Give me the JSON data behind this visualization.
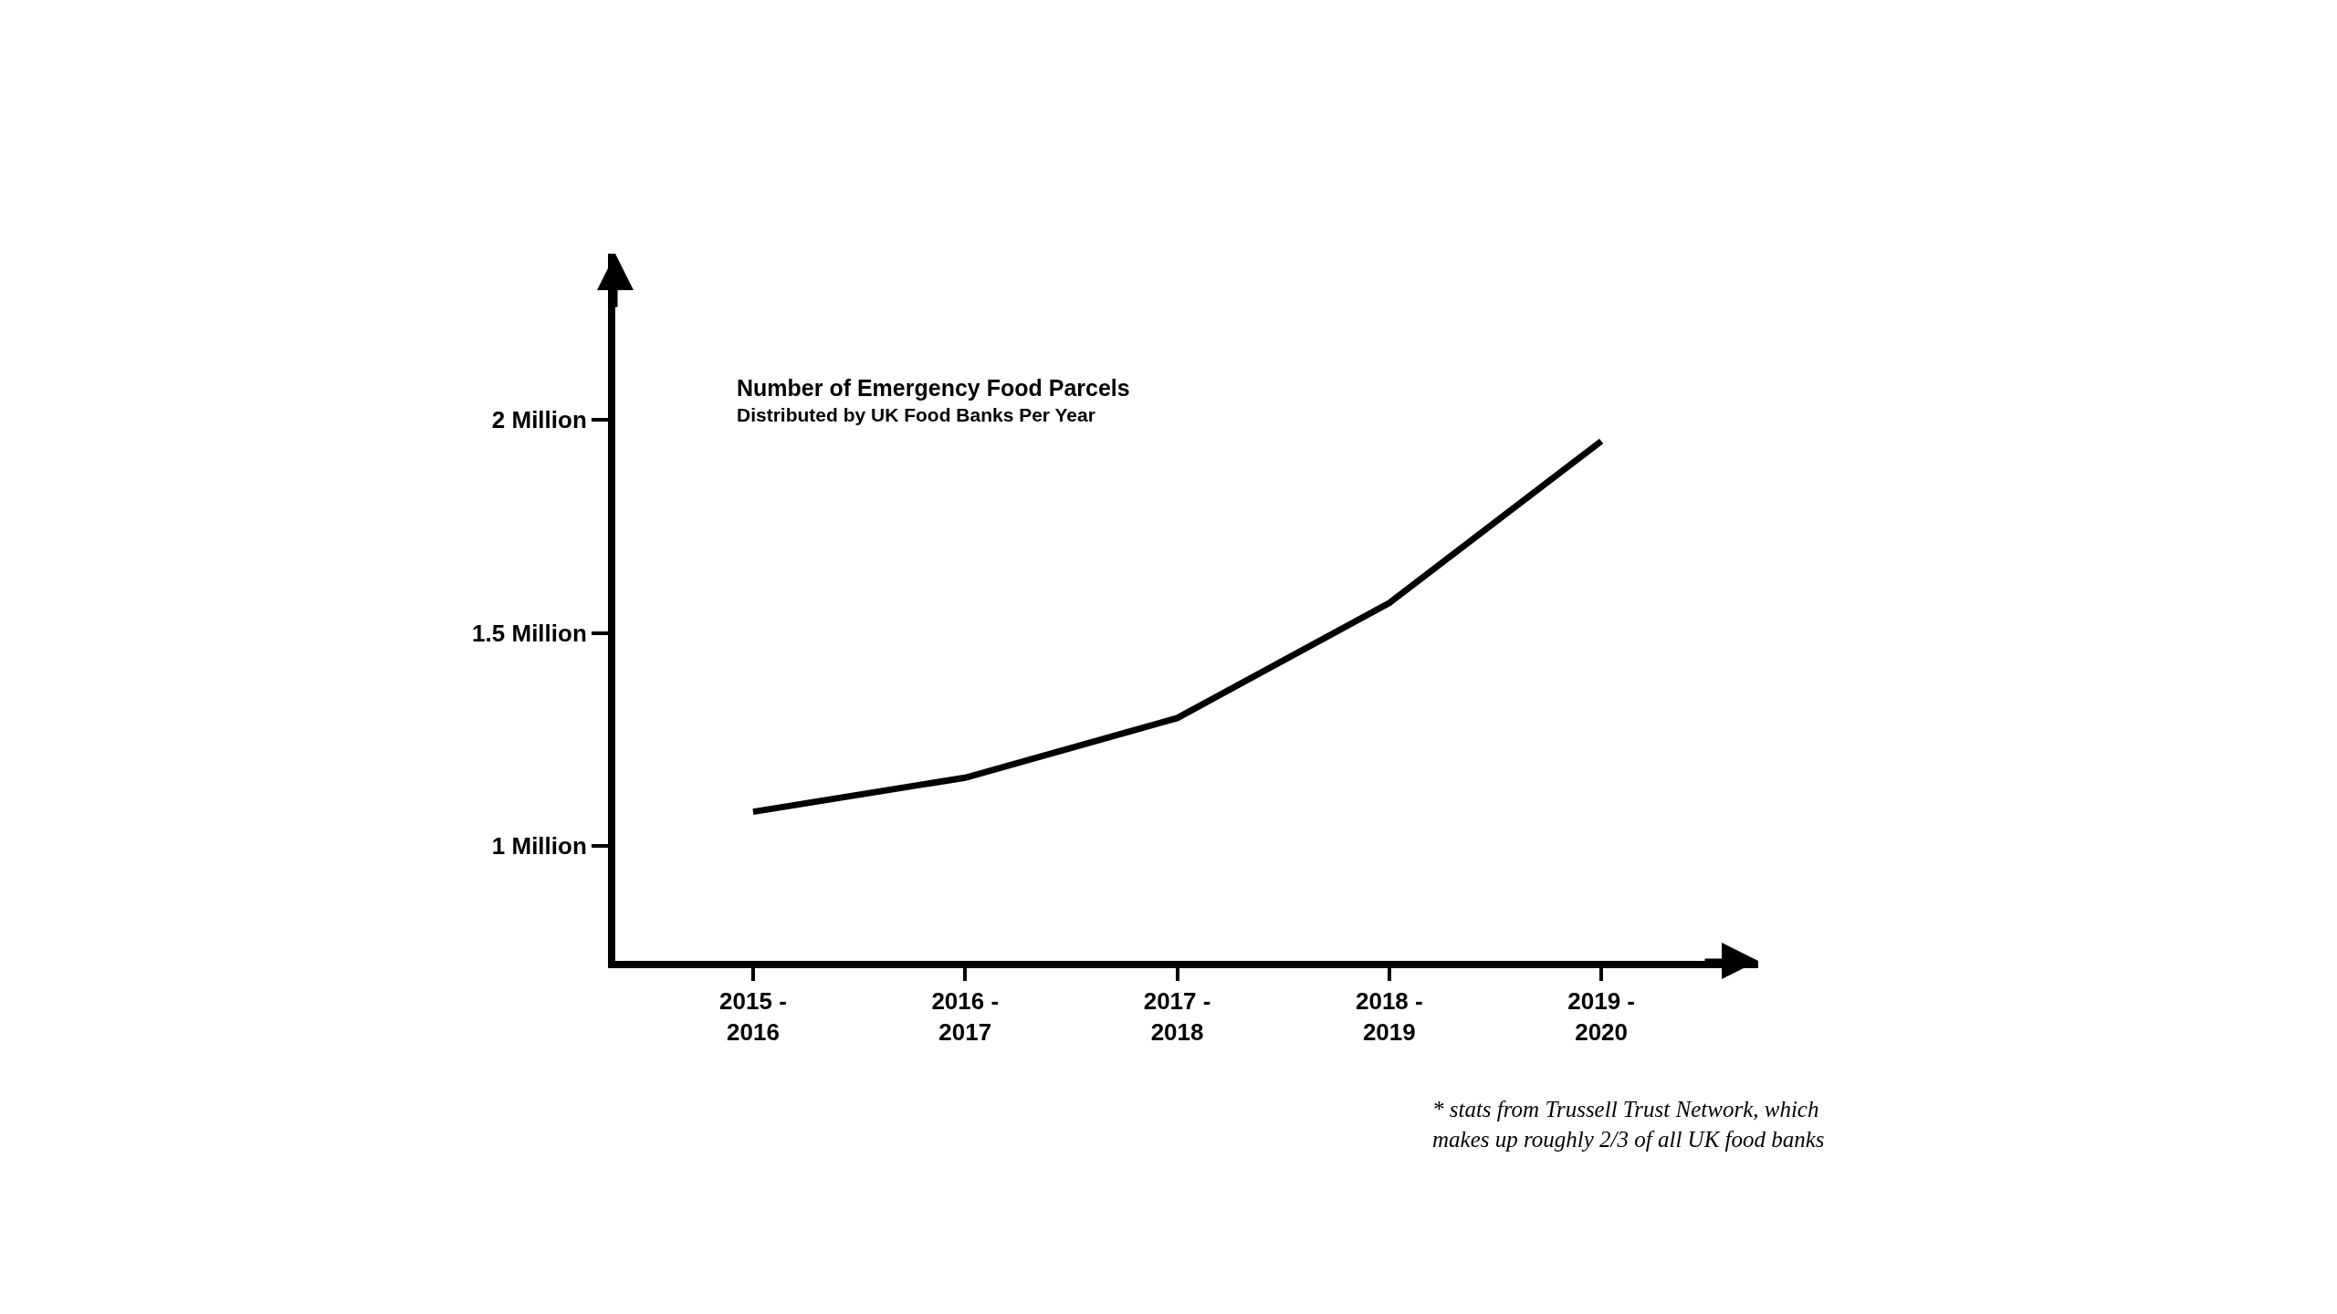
{
  "chart_data": {
    "type": "line",
    "title": "Number of Emergency Food Parcels",
    "subtitle": "Distributed by UK Food Banks Per Year",
    "categories": [
      "2015 -\n2016",
      "2016 -\n2017",
      "2017 -\n2018",
      "2018 -\n2019",
      "2019 -\n2020"
    ],
    "series": [
      {
        "color": "#000000",
        "values": [
          1.08,
          1.16,
          1.3,
          1.57,
          1.95
        ]
      }
    ],
    "ylim": [
      0.73,
      2.39
    ],
    "yticks": [
      {
        "value": 1,
        "label": "1 Million"
      },
      {
        "value": 1.5,
        "label": "1.5 Million"
      },
      {
        "value": 2,
        "label": "2 Million"
      }
    ],
    "marker": "none",
    "line_style": "solid",
    "annotations": [
      "* stats from Trussell Trust Network, which\nmakes up roughly 2/3 of all UK food banks"
    ]
  }
}
